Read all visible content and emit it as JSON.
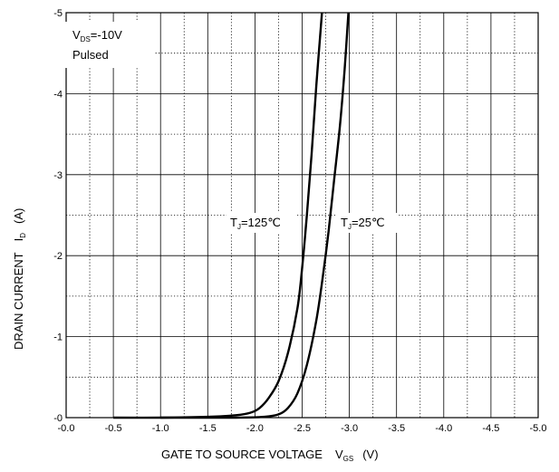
{
  "chart_data": {
    "type": "line",
    "title": "",
    "xlabel": {
      "main": "GATE TO SOURCE VOLTAGE",
      "symbol": "V",
      "subscript": "GS",
      "unit": "(V)"
    },
    "ylabel": {
      "main": "DRAIN CURRENT",
      "symbol": "I",
      "subscript": "D",
      "unit": "(A)"
    },
    "xlim": [
      0.0,
      -5.0
    ],
    "ylim": [
      0,
      -5
    ],
    "x_ticks": [
      "-0.0",
      "-0.5",
      "-1.0",
      "-1.5",
      "-2.0",
      "-2.5",
      "-3.0",
      "-3.5",
      "-4.0",
      "-4.5",
      "-5.0"
    ],
    "y_ticks": [
      "-0",
      "-1",
      "-2",
      "-3",
      "-4",
      "-5"
    ],
    "grid": {
      "major": true,
      "minor_dotted": true
    },
    "conditions": [
      {
        "symbol": "V",
        "subscript": "DS",
        "text": "=-10V"
      },
      {
        "text": "Pulsed"
      }
    ],
    "series": [
      {
        "name": {
          "symbol": "T",
          "subscript": "J",
          "text": "=125℃"
        },
        "x": [
          -0.5,
          -1.0,
          -1.5,
          -1.8,
          -1.95,
          -2.05,
          -2.15,
          -2.25,
          -2.35,
          -2.45,
          -2.5,
          -2.55,
          -2.6,
          -2.65,
          -2.71
        ],
        "y": [
          0,
          0,
          -0.01,
          -0.03,
          -0.06,
          -0.12,
          -0.25,
          -0.45,
          -0.8,
          -1.35,
          -1.85,
          -2.5,
          -3.25,
          -4.1,
          -5.0
        ]
      },
      {
        "name": {
          "symbol": "T",
          "subscript": "J",
          "text": "=25℃"
        },
        "x": [
          -1.0,
          -1.8,
          -2.1,
          -2.25,
          -2.35,
          -2.45,
          -2.55,
          -2.65,
          -2.72,
          -2.78,
          -2.84,
          -2.9,
          -2.95,
          -2.99
        ],
        "y": [
          0,
          0,
          -0.01,
          -0.04,
          -0.12,
          -0.3,
          -0.65,
          -1.2,
          -1.75,
          -2.3,
          -2.95,
          -3.6,
          -4.3,
          -5.0
        ]
      }
    ]
  }
}
